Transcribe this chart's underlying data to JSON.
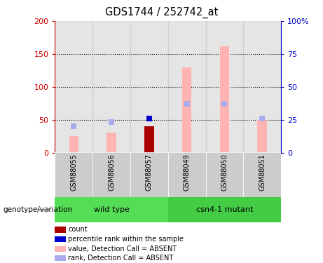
{
  "title": "GDS1744 / 252742_at",
  "samples": [
    "GSM88055",
    "GSM88056",
    "GSM88057",
    "GSM88049",
    "GSM88050",
    "GSM88051"
  ],
  "groups": [
    {
      "label": "wild type",
      "indices": [
        0,
        1,
        2
      ],
      "color": "#55dd55"
    },
    {
      "label": "csn4-1 mutant",
      "indices": [
        3,
        4,
        5
      ],
      "color": "#44cc44"
    }
  ],
  "value_bars": [
    25,
    30,
    0,
    130,
    162,
    50
  ],
  "value_bar_color_absent": "#ffb3b3",
  "count_bars": [
    0,
    0,
    40,
    0,
    0,
    0
  ],
  "count_bar_color": "#aa0000",
  "rank_squares_pct": [
    20,
    23,
    0,
    37,
    37,
    26
  ],
  "percentile_square_pct": [
    0,
    0,
    26,
    0,
    0,
    0
  ],
  "rank_square_color_absent": "#aaaaee",
  "percentile_square_color": "#0000cc",
  "ylim_left": [
    0,
    200
  ],
  "ylim_right": [
    0,
    100
  ],
  "yticks_left": [
    0,
    50,
    100,
    150,
    200
  ],
  "ytick_labels_left": [
    "0",
    "50",
    "100",
    "150",
    "200"
  ],
  "yticks_right": [
    0,
    25,
    50,
    75,
    100
  ],
  "ytick_labels_right": [
    "0",
    "25",
    "50",
    "75",
    "100%"
  ],
  "left_axis_color": "#cc0000",
  "right_axis_color": "#0000cc",
  "bg_color": "#ffffff",
  "sample_bg_color": "#cccccc",
  "genotype_label": "genotype/variation",
  "legend_items": [
    {
      "label": "count",
      "color": "#aa0000"
    },
    {
      "label": "percentile rank within the sample",
      "color": "#0000cc"
    },
    {
      "label": "value, Detection Call = ABSENT",
      "color": "#ffb3b3"
    },
    {
      "label": "rank, Detection Call = ABSENT",
      "color": "#aaaaee"
    }
  ],
  "bar_width": 0.25
}
